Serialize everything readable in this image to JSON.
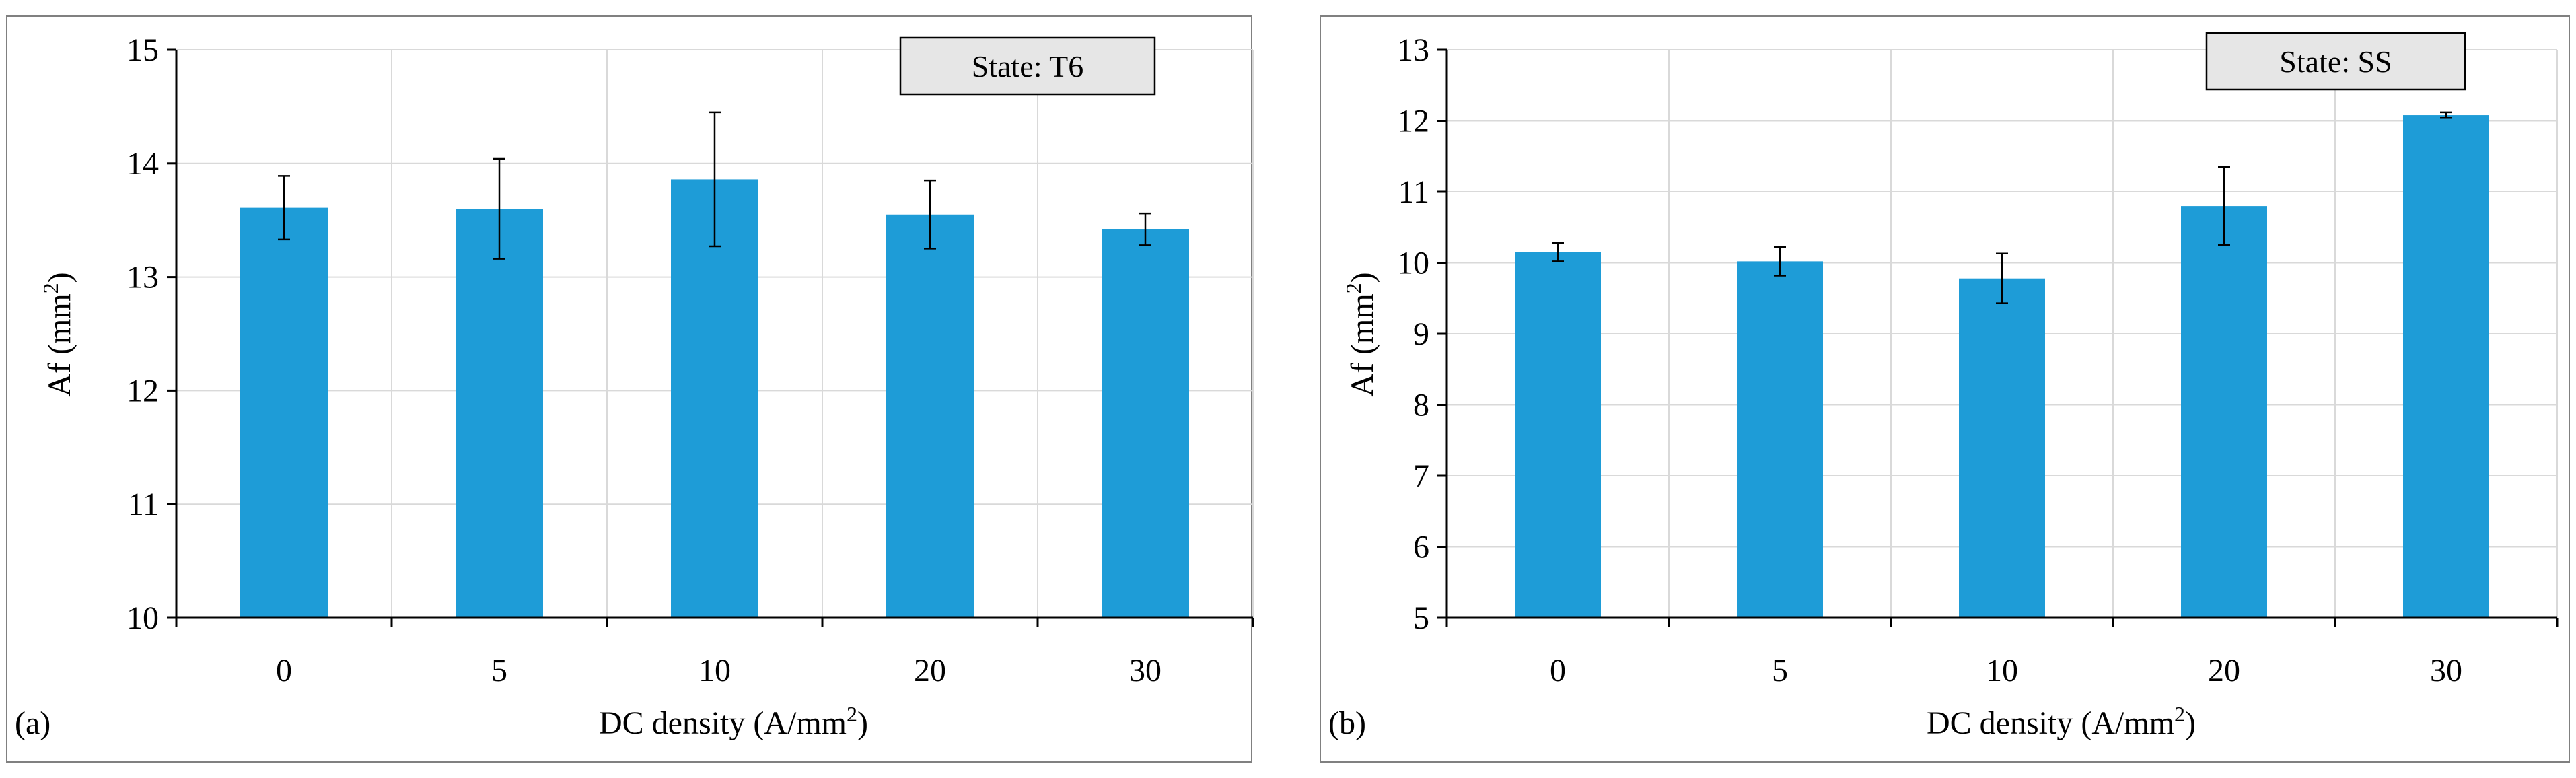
{
  "chart_data": [
    {
      "type": "bar",
      "panel_label": "(a)",
      "state_label": "State: T6",
      "xlabel": "DC density (A/mm",
      "xlabel_sup": "2",
      "xlabel_end": ")",
      "ylabel": "Af (mm",
      "ylabel_sup": "2",
      "ylabel_end": ")",
      "categories": [
        "0",
        "5",
        "10",
        "20",
        "30"
      ],
      "values": [
        13.61,
        13.6,
        13.86,
        13.55,
        13.42
      ],
      "errors": [
        0.28,
        0.44,
        0.59,
        0.3,
        0.14
      ],
      "ylim": [
        10,
        15
      ],
      "yticks": [
        "10",
        "11",
        "12",
        "13",
        "14",
        "15"
      ],
      "grid": true,
      "bar_color": "#1E9CD7"
    },
    {
      "type": "bar",
      "panel_label": "(b)",
      "state_label": "State: SS",
      "xlabel": "DC density (A/mm",
      "xlabel_sup": "2",
      "xlabel_end": ")",
      "ylabel": "Af (mm",
      "ylabel_sup": "2",
      "ylabel_end": ")",
      "categories": [
        "0",
        "5",
        "10",
        "20",
        "30"
      ],
      "values": [
        10.15,
        10.02,
        9.78,
        10.8,
        12.08
      ],
      "errors": [
        0.13,
        0.2,
        0.35,
        0.55,
        0.04
      ],
      "ylim": [
        5,
        13
      ],
      "yticks": [
        "5",
        "6",
        "7",
        "8",
        "9",
        "10",
        "11",
        "12",
        "13"
      ],
      "grid": true,
      "bar_color": "#1E9CD7"
    }
  ]
}
